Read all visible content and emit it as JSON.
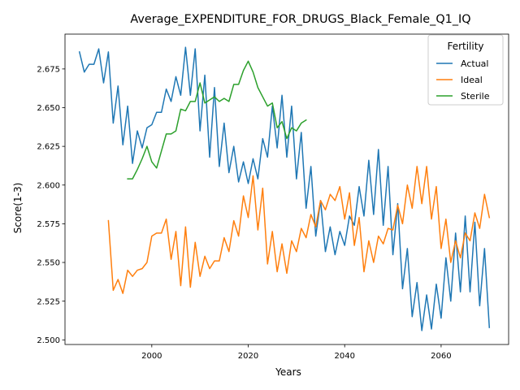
{
  "chart_data": {
    "type": "line",
    "title": "Average_EXPENDITURE_FOR_DRUGS_Black_Female_Q1_IQ",
    "xlabel": "Years",
    "ylabel": "Score(1-3)",
    "xlim": [
      1982,
      2074
    ],
    "ylim": [
      2.497,
      2.6975
    ],
    "xticks": [
      2000,
      2020,
      2040,
      2060
    ],
    "xtick_labels": [
      "2000",
      "2020",
      "2040",
      "2060"
    ],
    "yticks": [
      2.5,
      2.525,
      2.55,
      2.575,
      2.6,
      2.625,
      2.65,
      2.675
    ],
    "ytick_labels": [
      "2.500",
      "2.525",
      "2.550",
      "2.575",
      "2.600",
      "2.625",
      "2.650",
      "2.675"
    ],
    "grid": false,
    "legend": {
      "title": "Fertility",
      "placement": "top-right"
    },
    "series": [
      {
        "name": "Actual",
        "color": "#1f77b4",
        "x": [
          1985,
          1986,
          1987,
          1988,
          1989,
          1990,
          1991,
          1992,
          1993,
          1994,
          1995,
          1996,
          1997,
          1998,
          1999,
          2000,
          2001,
          2002,
          2003,
          2004,
          2005,
          2006,
          2007,
          2008,
          2009,
          2010,
          2011,
          2012,
          2013,
          2014,
          2015,
          2016,
          2017,
          2018,
          2019,
          2020,
          2021,
          2022,
          2023,
          2024,
          2025,
          2026,
          2027,
          2028,
          2029,
          2030,
          2031,
          2032,
          2033,
          2034,
          2035,
          2036,
          2037,
          2038,
          2039,
          2040,
          2041,
          2042,
          2043,
          2044,
          2045,
          2046,
          2047,
          2048,
          2049,
          2050,
          2051,
          2052,
          2053,
          2054,
          2055,
          2056,
          2057,
          2058,
          2059,
          2060,
          2061,
          2062,
          2063,
          2064,
          2065,
          2066,
          2067,
          2068,
          2069,
          2070
        ],
        "values": [
          2.686,
          2.673,
          2.678,
          2.678,
          2.688,
          2.666,
          2.686,
          2.64,
          2.664,
          2.626,
          2.651,
          2.614,
          2.635,
          2.624,
          2.637,
          2.639,
          2.647,
          2.647,
          2.662,
          2.654,
          2.67,
          2.658,
          2.689,
          2.658,
          2.688,
          2.635,
          2.671,
          2.618,
          2.663,
          2.612,
          2.64,
          2.608,
          2.625,
          2.602,
          2.615,
          2.601,
          2.617,
          2.604,
          2.63,
          2.618,
          2.651,
          2.624,
          2.658,
          2.618,
          2.651,
          2.604,
          2.634,
          2.585,
          2.612,
          2.567,
          2.59,
          2.557,
          2.573,
          2.555,
          2.57,
          2.561,
          2.58,
          2.574,
          2.599,
          2.58,
          2.616,
          2.581,
          2.623,
          2.574,
          2.612,
          2.555,
          2.588,
          2.533,
          2.559,
          2.515,
          2.537,
          2.506,
          2.529,
          2.507,
          2.536,
          2.514,
          2.553,
          2.525,
          2.569,
          2.531,
          2.58,
          2.531,
          2.576,
          2.522,
          2.559,
          2.508
        ]
      },
      {
        "name": "Ideal",
        "color": "#ff7f0e",
        "x": [
          1991,
          1992,
          1993,
          1994,
          1995,
          1996,
          1997,
          1998,
          1999,
          2000,
          2001,
          2002,
          2003,
          2004,
          2005,
          2006,
          2007,
          2008,
          2009,
          2010,
          2011,
          2012,
          2013,
          2014,
          2015,
          2016,
          2017,
          2018,
          2019,
          2020,
          2021,
          2022,
          2023,
          2024,
          2025,
          2026,
          2027,
          2028,
          2029,
          2030,
          2031,
          2032,
          2033,
          2034,
          2035,
          2036,
          2037,
          2038,
          2039,
          2040,
          2041,
          2042,
          2043,
          2044,
          2045,
          2046,
          2047,
          2048,
          2049,
          2050,
          2051,
          2052,
          2053,
          2054,
          2055,
          2056,
          2057,
          2058,
          2059,
          2060,
          2061,
          2062,
          2063,
          2064,
          2065,
          2066,
          2067,
          2068,
          2069,
          2070
        ],
        "values": [
          2.577,
          2.532,
          2.539,
          2.53,
          2.545,
          2.541,
          2.545,
          2.546,
          2.55,
          2.567,
          2.569,
          2.569,
          2.578,
          2.552,
          2.57,
          2.535,
          2.573,
          2.534,
          2.563,
          2.541,
          2.554,
          2.546,
          2.551,
          2.551,
          2.566,
          2.557,
          2.577,
          2.567,
          2.593,
          2.579,
          2.606,
          2.571,
          2.598,
          2.549,
          2.57,
          2.544,
          2.562,
          2.543,
          2.564,
          2.557,
          2.572,
          2.566,
          2.581,
          2.573,
          2.59,
          2.584,
          2.594,
          2.59,
          2.599,
          2.578,
          2.595,
          2.561,
          2.579,
          2.544,
          2.564,
          2.55,
          2.567,
          2.562,
          2.572,
          2.571,
          2.587,
          2.575,
          2.6,
          2.585,
          2.612,
          2.588,
          2.612,
          2.578,
          2.599,
          2.559,
          2.578,
          2.55,
          2.564,
          2.553,
          2.569,
          2.564,
          2.582,
          2.572,
          2.594,
          2.579
        ]
      },
      {
        "name": "Sterile",
        "color": "#2ca02c",
        "x": [
          1995,
          1996,
          1997,
          1998,
          1999,
          2000,
          2001,
          2002,
          2003,
          2004,
          2005,
          2006,
          2007,
          2008,
          2009,
          2010,
          2011,
          2012,
          2013,
          2014,
          2015,
          2016,
          2017,
          2018,
          2019,
          2020,
          2021,
          2022,
          2023,
          2024,
          2025,
          2026,
          2027,
          2028,
          2029,
          2030,
          2031,
          2032
        ],
        "values": [
          2.604,
          2.604,
          2.61,
          2.617,
          2.625,
          2.615,
          2.611,
          2.622,
          2.633,
          2.633,
          2.635,
          2.649,
          2.648,
          2.654,
          2.654,
          2.666,
          2.653,
          2.655,
          2.657,
          2.654,
          2.656,
          2.654,
          2.665,
          2.665,
          2.674,
          2.68,
          2.673,
          2.663,
          2.657,
          2.651,
          2.653,
          2.637,
          2.641,
          2.63,
          2.637,
          2.635,
          2.64,
          2.642
        ]
      }
    ]
  }
}
